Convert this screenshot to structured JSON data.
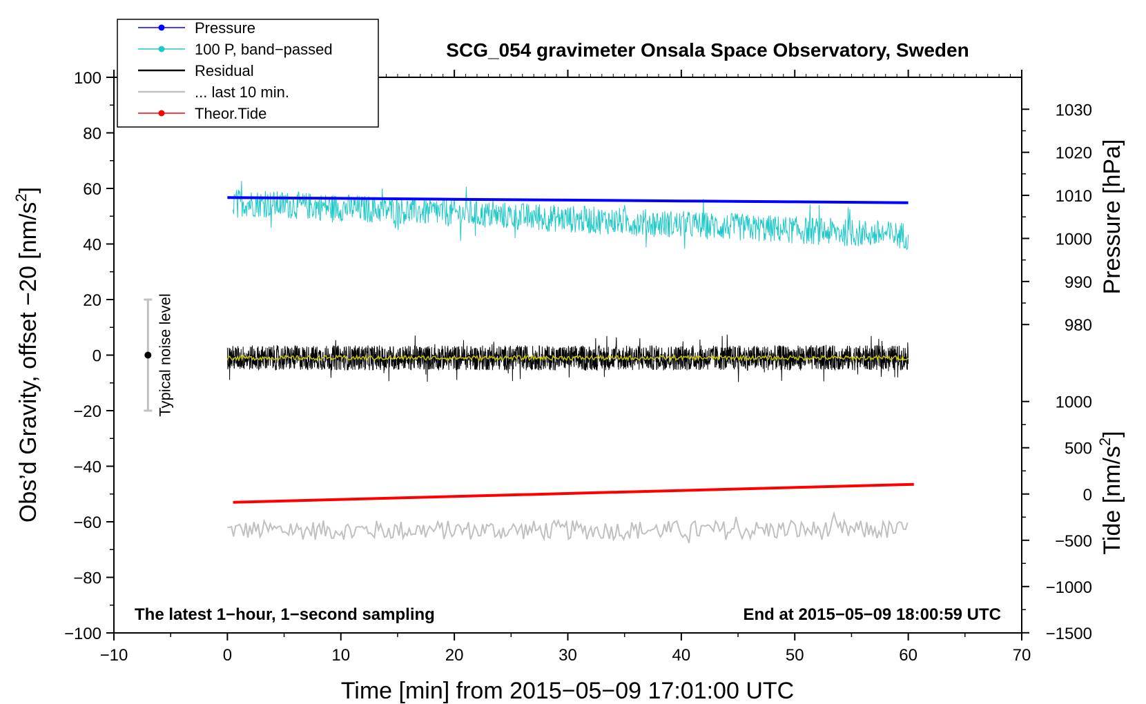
{
  "chart_data": {
    "type": "line",
    "title": "SCG_054 gravimeter Onsala Space Observatory, Sweden",
    "xlabel": "Time [min] from 2015−05−09 17:01:00 UTC",
    "xlim": [
      -10,
      70
    ],
    "x_ticks": [
      -10,
      0,
      10,
      20,
      30,
      40,
      50,
      60,
      70
    ],
    "x_tick_labels": [
      "−10",
      "0",
      "10",
      "20",
      "30",
      "40",
      "50",
      "60",
      "70"
    ],
    "left_axis": {
      "label_main": "Obs’d Gravity, offset −20 [nm/s",
      "label_sup": "2",
      "label_end": "]",
      "ylim": [
        -100,
        100
      ],
      "ticks": [
        -100,
        -80,
        -60,
        -40,
        -20,
        0,
        20,
        40,
        60,
        80,
        100
      ],
      "tick_labels": [
        "−100",
        "−80",
        "−60",
        "−40",
        "−20",
        "0",
        "20",
        "40",
        "60",
        "80",
        "100"
      ]
    },
    "pressure_axis": {
      "label": "Pressure [hPa]",
      "ticks": [
        980,
        990,
        1000,
        1010,
        1020,
        1030
      ],
      "tick_labels": [
        "980",
        "990",
        "1000",
        "1010",
        "1020",
        "1030"
      ],
      "left_value_at_1000": 42,
      "left_units_per_hPa": 1.55
    },
    "tide_axis": {
      "label_main": "Tide [nm/s",
      "label_sup": "2",
      "label_end": "]",
      "ticks": [
        -1500,
        -1000,
        -500,
        0,
        500,
        1000
      ],
      "tick_labels": [
        "−1500",
        "−1000",
        "−500",
        "0",
        "500",
        "1000"
      ],
      "left_value_at_0": -50,
      "left_units_per_nms2": 0.0333
    },
    "legend": {
      "placement": "top-left",
      "entries": [
        {
          "label": "Pressure",
          "color": "#0000ff",
          "marker": true
        },
        {
          "label": "100 P, band−passed",
          "color": "#20c8c8",
          "marker": true
        },
        {
          "label": "Residual",
          "color": "#000000",
          "marker": false
        },
        {
          "label": "... last 10 min.",
          "color": "#c0c0c0",
          "marker": false
        },
        {
          "label": "Theor.Tide",
          "color": "#ff0000",
          "marker": true
        }
      ]
    },
    "series": [
      {
        "name": "Pressure",
        "color": "#0000ff",
        "x": [
          0,
          10,
          20,
          30,
          40,
          50,
          60
        ],
        "y": [
          1009.5,
          1009.3,
          1009.1,
          1008.9,
          1008.7,
          1008.5,
          1008.3
        ]
      },
      {
        "name": "100 P, band−passed",
        "color": "#20c8c8",
        "x_range": [
          0.5,
          60
        ],
        "trend": [
          55,
          43
        ],
        "noise_amplitude": 5
      },
      {
        "name": "Residual",
        "color": "#000000",
        "x_range": [
          0,
          60
        ],
        "trend": [
          -1,
          -1
        ],
        "noise_amplitude": 4.5
      },
      {
        "name": "Residual smoothed",
        "color": "#c8c800",
        "x_range": [
          0,
          60
        ],
        "trend": [
          -1,
          -1
        ],
        "noise_amplitude": 0.8
      },
      {
        "name": "... last 10 min.",
        "color": "#c0c0c0",
        "x_range": [
          0,
          60
        ],
        "trend": [
          -63,
          -63
        ],
        "noise_amplitude": 3.5
      },
      {
        "name": "Theor.Tide",
        "color": "#ff0000",
        "x": [
          0.5,
          60.5
        ],
        "y": [
          -53,
          -46.5
        ]
      }
    ],
    "annotations": {
      "noise_label": "Typical noise level",
      "noise_bar": {
        "x": -7,
        "center": 0,
        "half_range": 20
      },
      "bottom_left": "The latest 1−hour, 1−second sampling",
      "bottom_right": "End at 2015−05−09 18:00:59 UTC"
    }
  }
}
